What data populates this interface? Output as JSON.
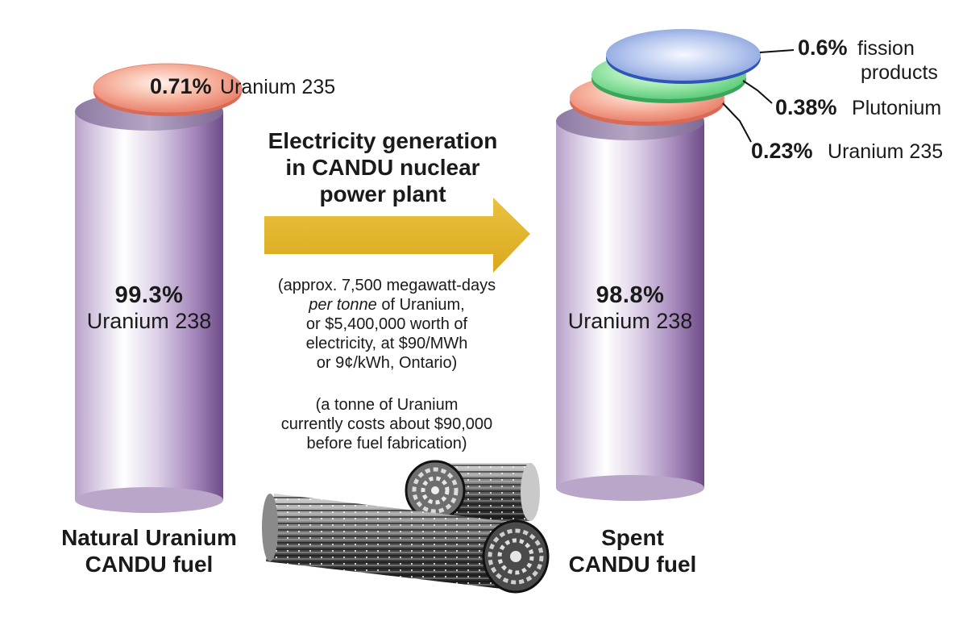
{
  "natural": {
    "u235_percent": "0.71%",
    "u235_label": "Uranium 235",
    "u238_percent": "99.3%",
    "u238_label": "Uranium 238",
    "caption_line1": "Natural Uranium",
    "caption_line2": "CANDU fuel"
  },
  "process": {
    "title_line1": "Electricity generation",
    "title_line2": "in CANDU nuclear",
    "title_line3": "power plant",
    "note1_line1": "(approx. 7,500 megawatt-days",
    "note1_line2_italic": "per tonne",
    "note1_line2_rest": " of Uranium,",
    "note1_line3": "or $5,400,000 worth of",
    "note1_line4": "electricity, at $90/MWh",
    "note1_line5": "or 9¢/kWh, Ontario)",
    "note2_line1": "(a tonne of Uranium",
    "note2_line2": "currently costs about $90,000",
    "note2_line3": "before fuel fabrication)"
  },
  "spent": {
    "fission_percent": "0.6%",
    "fission_label_line1": "fission",
    "fission_label_line2": "products",
    "plutonium_percent": "0.38%",
    "plutonium_label": "Plutonium",
    "u235_percent": "0.23%",
    "u235_label": "Uranium 235",
    "u238_percent": "98.8%",
    "u238_label": "Uranium 238",
    "caption_line1": "Spent",
    "caption_line2": "CANDU fuel"
  },
  "colors": {
    "cylinder_purple": "#7d5a96",
    "u235_disc": "#f0907a",
    "plutonium_disc": "#8ee0a0",
    "fission_disc": "#8aa4d8",
    "arrow_gold": "#e4b52a"
  }
}
